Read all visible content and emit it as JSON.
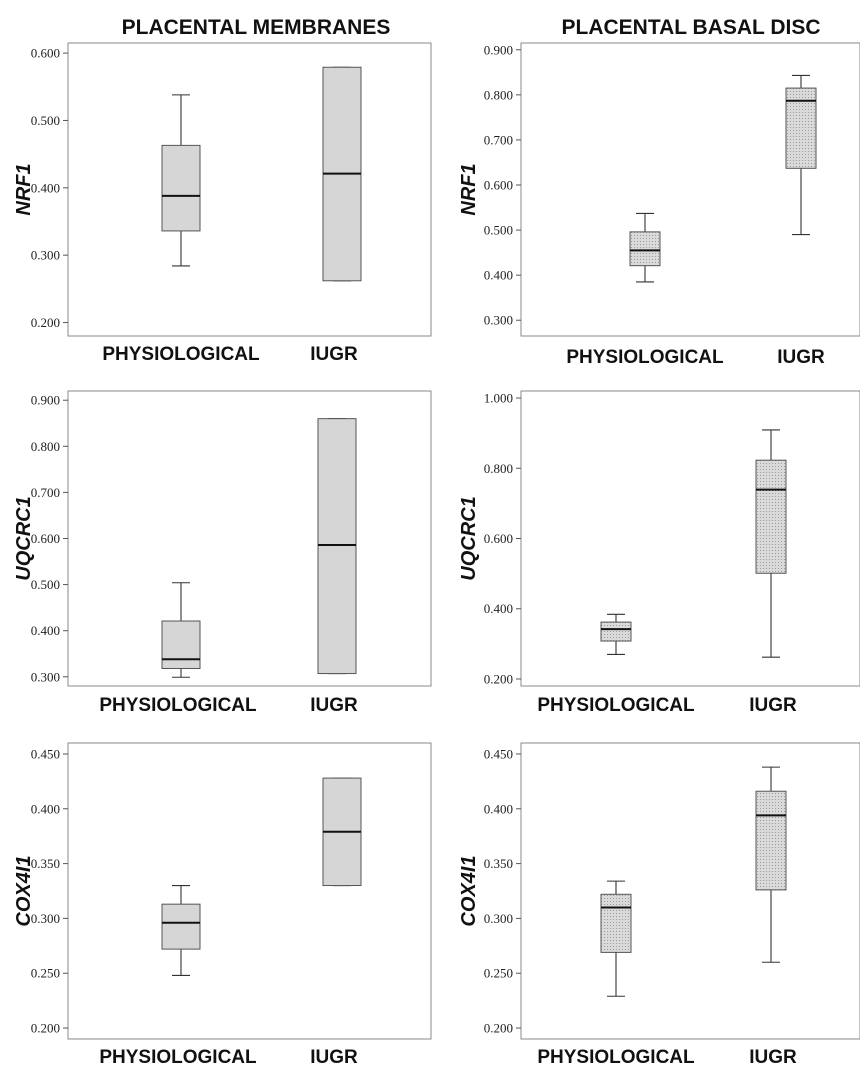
{
  "column_titles": [
    "PLACENTAL MEMBRANES",
    "PLACENTAL BASAL DISC"
  ],
  "chart_data": [
    {
      "type": "box",
      "column": "PLACENTAL MEMBRANES",
      "ylabel": "NRF1",
      "categories": [
        "PHYSIOLOGICAL",
        "IUGR"
      ],
      "yticks": [
        "0.200",
        "0.300",
        "0.400",
        "0.500",
        "0.600"
      ],
      "ylim": [
        0.18,
        0.615
      ],
      "boxes": [
        {
          "category": "PHYSIOLOGICAL",
          "min": 0.284,
          "q1": 0.336,
          "median": 0.388,
          "q3": 0.463,
          "max": 0.538
        },
        {
          "category": "IUGR",
          "min": 0.262,
          "q1": 0.262,
          "median": 0.421,
          "q3": 0.579,
          "max": 0.579
        }
      ],
      "fill": "#d6d6d6"
    },
    {
      "type": "box",
      "column": "PLACENTAL BASAL DISC",
      "ylabel": "NRF1",
      "categories": [
        "PHYSIOLOGICAL",
        "IUGR"
      ],
      "yticks": [
        "0.300",
        "0.400",
        "0.500",
        "0.600",
        "0.700",
        "0.800",
        "0.900"
      ],
      "ylim": [
        0.265,
        0.915
      ],
      "boxes": [
        {
          "category": "PHYSIOLOGICAL",
          "min": 0.385,
          "q1": 0.421,
          "median": 0.455,
          "q3": 0.496,
          "max": 0.537
        },
        {
          "category": "IUGR",
          "min": 0.49,
          "q1": 0.637,
          "median": 0.787,
          "q3": 0.815,
          "max": 0.843
        }
      ],
      "fill": "#d9d9d9",
      "dotted": true
    },
    {
      "type": "box",
      "column": "PLACENTAL MEMBRANES",
      "ylabel": "UQCRC1",
      "categories": [
        "PHYSIOLOGICAL",
        "IUGR"
      ],
      "yticks": [
        "0.300",
        "0.400",
        "0.500",
        "0.600",
        "0.700",
        "0.800",
        "0.900"
      ],
      "ylim": [
        0.28,
        0.92
      ],
      "boxes": [
        {
          "category": "PHYSIOLOGICAL",
          "min": 0.299,
          "q1": 0.318,
          "median": 0.338,
          "q3": 0.421,
          "max": 0.504
        },
        {
          "category": "IUGR",
          "min": 0.307,
          "q1": 0.307,
          "median": 0.586,
          "q3": 0.86,
          "max": 0.86
        }
      ],
      "fill": "#d6d6d6"
    },
    {
      "type": "box",
      "column": "PLACENTAL BASAL DISC",
      "ylabel": "UQCRC1",
      "categories": [
        "PHYSIOLOGICAL",
        "IUGR"
      ],
      "yticks": [
        "0.200",
        "0.400",
        "0.600",
        "0.800",
        "1.000"
      ],
      "ylim": [
        0.18,
        1.02
      ],
      "boxes": [
        {
          "category": "PHYSIOLOGICAL",
          "min": 0.27,
          "q1": 0.308,
          "median": 0.342,
          "q3": 0.362,
          "max": 0.384
        },
        {
          "category": "IUGR",
          "min": 0.262,
          "q1": 0.501,
          "median": 0.739,
          "q3": 0.823,
          "max": 0.909
        }
      ],
      "fill": "#d9d9d9",
      "dotted": true
    },
    {
      "type": "box",
      "column": "PLACENTAL MEMBRANES",
      "ylabel": "COX4I1",
      "categories": [
        "PHYSIOLOGICAL",
        "IUGR"
      ],
      "yticks": [
        "0.200",
        "0.250",
        "0.300",
        "0.350",
        "0.400",
        "0.450"
      ],
      "ylim": [
        0.19,
        0.46
      ],
      "boxes": [
        {
          "category": "PHYSIOLOGICAL",
          "min": 0.248,
          "q1": 0.272,
          "median": 0.296,
          "q3": 0.313,
          "max": 0.33
        },
        {
          "category": "IUGR",
          "min": 0.33,
          "q1": 0.33,
          "median": 0.379,
          "q3": 0.428,
          "max": 0.428
        }
      ],
      "fill": "#d6d6d6"
    },
    {
      "type": "box",
      "column": "PLACENTAL BASAL DISC",
      "ylabel": "COX4I1",
      "categories": [
        "PHYSIOLOGICAL",
        "IUGR"
      ],
      "yticks": [
        "0.200",
        "0.250",
        "0.300",
        "0.350",
        "0.400",
        "0.450"
      ],
      "ylim": [
        0.19,
        0.46
      ],
      "boxes": [
        {
          "category": "PHYSIOLOGICAL",
          "min": 0.229,
          "q1": 0.269,
          "median": 0.31,
          "q3": 0.322,
          "max": 0.334
        },
        {
          "category": "IUGR",
          "min": 0.26,
          "q1": 0.326,
          "median": 0.394,
          "q3": 0.416,
          "max": 0.438
        }
      ],
      "fill": "#d9d9d9",
      "dotted": true
    }
  ]
}
